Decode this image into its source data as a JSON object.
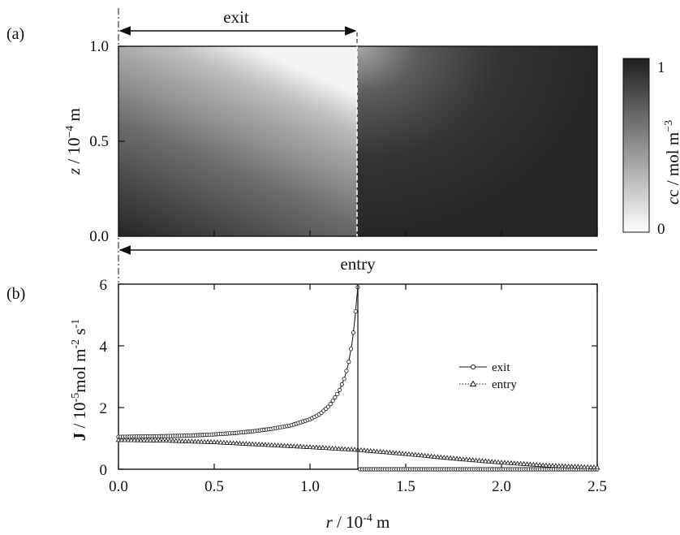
{
  "chart_data": [
    {
      "panel": "(a)",
      "type": "heatmap",
      "xlim": [
        0,
        2.5
      ],
      "ylim": [
        0,
        1.0
      ],
      "yticks": [
        "0.0",
        "0.5",
        "1.0"
      ],
      "ylabel": {
        "var": "z",
        "unit": " / 10",
        "exp": "−4",
        "tail": " m"
      },
      "colorbar": {
        "label": "c / mol m",
        "exp": "−3",
        "min": "0",
        "max": "1",
        "low_color": "#ffffff",
        "high_color": "#222222"
      },
      "annotations": {
        "exit": {
          "text": "exit",
          "x_from": 0.0,
          "x_to": 1.25
        },
        "entry": {
          "text": "entry",
          "x_from": 0.0,
          "x_to": 2.5
        }
      },
      "boundary_r": 1.25
    },
    {
      "panel": "(b)",
      "type": "line",
      "xlim": [
        0,
        2.5
      ],
      "ylim": [
        0,
        6
      ],
      "xticks": [
        "0.0",
        "0.5",
        "1.0",
        "1.5",
        "2.0",
        "2.5"
      ],
      "yticks": [
        "0",
        "2",
        "4",
        "6"
      ],
      "xlabel": {
        "var": "r",
        "unit": " / 10",
        "exp": "-4",
        "tail": " m"
      },
      "ylabel": {
        "var": "J",
        "unit": " / 10",
        "exp": "-5",
        "mid": "mol m",
        "exp2": "-2",
        "s": " s",
        "exp3": "-1"
      },
      "legend": {
        "placement": "right",
        "items": [
          "exit",
          "entry"
        ]
      },
      "series": [
        {
          "name": "exit",
          "marker": "circle",
          "line": "solid",
          "x": [
            0.0,
            0.1,
            0.2,
            0.3,
            0.4,
            0.5,
            0.6,
            0.7,
            0.8,
            0.9,
            1.0,
            1.05,
            1.1,
            1.15,
            1.18,
            1.2,
            1.22,
            1.235,
            1.245,
            1.25,
            1.26,
            1.4,
            1.6,
            1.8,
            2.0,
            2.2,
            2.4,
            2.5
          ],
          "y": [
            1.05,
            1.06,
            1.07,
            1.08,
            1.1,
            1.13,
            1.17,
            1.23,
            1.31,
            1.42,
            1.62,
            1.78,
            2.05,
            2.5,
            2.95,
            3.4,
            4.1,
            4.9,
            5.6,
            5.9,
            0.0,
            0.0,
            0.0,
            0.0,
            0.0,
            0.0,
            0.0,
            0.0
          ]
        },
        {
          "name": "entry",
          "marker": "triangle",
          "line": "dotted",
          "x": [
            0.0,
            0.25,
            0.5,
            0.75,
            1.0,
            1.25,
            1.5,
            1.75,
            2.0,
            2.25,
            2.5
          ],
          "y": [
            0.95,
            0.93,
            0.88,
            0.8,
            0.72,
            0.63,
            0.5,
            0.35,
            0.22,
            0.12,
            0.06
          ]
        }
      ]
    }
  ]
}
